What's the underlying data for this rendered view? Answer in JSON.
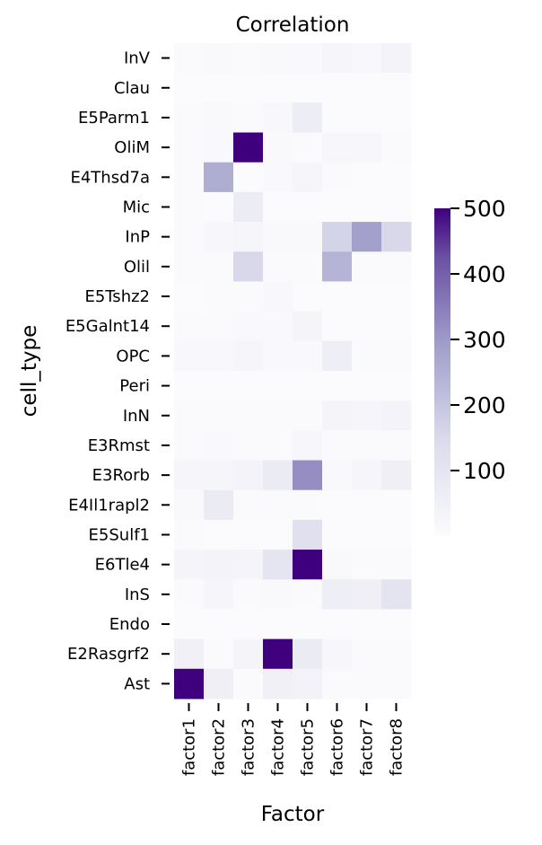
{
  "chart_data": {
    "type": "heatmap",
    "title": "Correlation",
    "xlabel": "Factor",
    "ylabel": "cell_type",
    "x_categories": [
      "factor1",
      "factor2",
      "factor3",
      "factor4",
      "factor5",
      "factor6",
      "factor7",
      "factor8"
    ],
    "y_categories": [
      "InV",
      "Clau",
      "E5Parm1",
      "OliM",
      "E4Thsd7a",
      "Mic",
      "InP",
      "Olil",
      "E5Tshz2",
      "E5Galnt14",
      "OPC",
      "Peri",
      "InN",
      "E3Rmst",
      "E3Rorb",
      "E4Il1rapl2",
      "E5Sulf1",
      "E6Tle4",
      "InS",
      "Endo",
      "E2Rasgrf2",
      "Ast"
    ],
    "values": [
      [
        8,
        15,
        10,
        15,
        12,
        25,
        18,
        35
      ],
      [
        3,
        5,
        3,
        3,
        3,
        3,
        3,
        3
      ],
      [
        8,
        15,
        8,
        18,
        65,
        5,
        5,
        5
      ],
      [
        8,
        12,
        500,
        15,
        10,
        20,
        20,
        10
      ],
      [
        8,
        255,
        5,
        12,
        28,
        8,
        5,
        5
      ],
      [
        10,
        5,
        70,
        5,
        5,
        5,
        5,
        5
      ],
      [
        8,
        20,
        25,
        15,
        15,
        165,
        285,
        155
      ],
      [
        8,
        8,
        155,
        8,
        8,
        240,
        8,
        8
      ],
      [
        5,
        8,
        10,
        18,
        5,
        5,
        5,
        5
      ],
      [
        10,
        8,
        12,
        12,
        30,
        5,
        5,
        5
      ],
      [
        18,
        18,
        25,
        12,
        12,
        60,
        8,
        8
      ],
      [
        3,
        3,
        3,
        3,
        3,
        3,
        3,
        3
      ],
      [
        8,
        10,
        10,
        10,
        10,
        30,
        25,
        35
      ],
      [
        8,
        12,
        10,
        10,
        20,
        8,
        8,
        8
      ],
      [
        25,
        25,
        35,
        75,
        320,
        15,
        25,
        55
      ],
      [
        15,
        75,
        10,
        8,
        8,
        5,
        5,
        5
      ],
      [
        8,
        5,
        5,
        5,
        125,
        5,
        5,
        5
      ],
      [
        30,
        35,
        30,
        100,
        500,
        15,
        10,
        10
      ],
      [
        8,
        25,
        10,
        15,
        8,
        60,
        55,
        105
      ],
      [
        3,
        3,
        3,
        3,
        3,
        3,
        3,
        3
      ],
      [
        50,
        8,
        30,
        500,
        75,
        20,
        8,
        8
      ],
      [
        500,
        55,
        10,
        50,
        40,
        8,
        8,
        8
      ]
    ],
    "colormap": "Purples",
    "color_low": "#fcfbfd",
    "color_high": "#3f007d",
    "vmin": 0,
    "vmax": 500,
    "colorbar_ticks": [
      100,
      200,
      300,
      400,
      500
    ],
    "grid": false
  }
}
